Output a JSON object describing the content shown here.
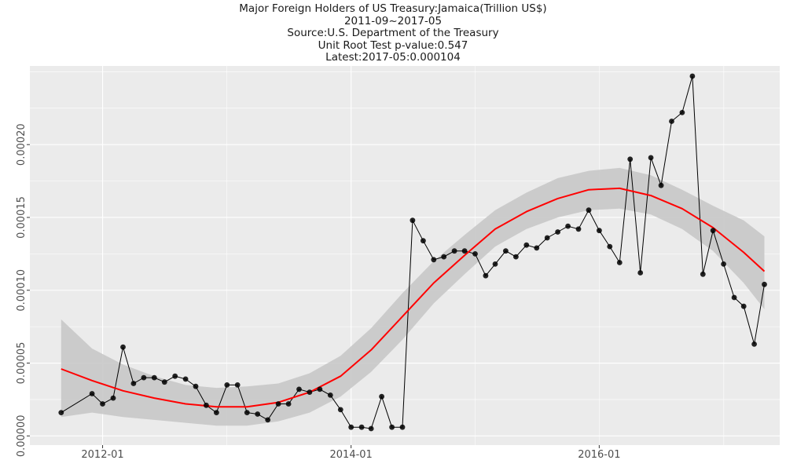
{
  "title_lines": [
    "Major Foreign Holders of US Treasury:Jamaica(Trillion US$)",
    "2011-09~2017-05",
    "Source:U.S. Department of the Treasury",
    "Unit Root Test p-value:0.547",
    "Latest:2017-05:0.000104"
  ],
  "colors": {
    "panel": "#ebebeb",
    "grid": "#ffffff",
    "series_line": "#000000",
    "points": "#000000",
    "smooth_line": "#ff0000",
    "ribbon": "#c8c8c8"
  },
  "chart_data": {
    "type": "line",
    "xlabel": "",
    "ylabel": "",
    "x_tick_labels": [
      "2012-01",
      "2014-01",
      "2016-01"
    ],
    "y_tick_labels": [
      "0.00000",
      "0.00005",
      "0.00010",
      "0.00015",
      "0.00020"
    ],
    "y_ticks": [
      0,
      5e-05,
      0.0001,
      0.00015,
      0.0002
    ],
    "x_range": [
      "2011-06-01",
      "2017-06-15"
    ],
    "ylim": [
      -6.3e-06,
      0.000254
    ],
    "grid": true,
    "series": [
      {
        "values": [
          [
            "2011-09",
            1.6e-05
          ],
          [
            "2011-12",
            2.9e-05
          ],
          [
            "2012-01",
            2.2e-05
          ],
          [
            "2012-02",
            2.6e-05
          ],
          [
            "2012-03",
            6.1e-05
          ],
          [
            "2012-04",
            3.6e-05
          ],
          [
            "2012-05",
            4e-05
          ],
          [
            "2012-06",
            4e-05
          ],
          [
            "2012-07",
            3.7e-05
          ],
          [
            "2012-08",
            4.1e-05
          ],
          [
            "2012-09",
            3.9e-05
          ],
          [
            "2012-10",
            3.4e-05
          ],
          [
            "2012-11",
            2.1e-05
          ],
          [
            "2012-12",
            1.6e-05
          ],
          [
            "2013-01",
            3.5e-05
          ],
          [
            "2013-02",
            3.5e-05
          ],
          [
            "2013-03",
            1.6e-05
          ],
          [
            "2013-04",
            1.5e-05
          ],
          [
            "2013-05",
            1.1e-05
          ],
          [
            "2013-06",
            2.2e-05
          ],
          [
            "2013-07",
            2.2e-05
          ],
          [
            "2013-08",
            3.2e-05
          ],
          [
            "2013-09",
            3e-05
          ],
          [
            "2013-10",
            3.2e-05
          ],
          [
            "2013-11",
            2.8e-05
          ],
          [
            "2013-12",
            1.8e-05
          ],
          [
            "2014-01",
            6e-06
          ],
          [
            "2014-02",
            6e-06
          ],
          [
            "2014-03",
            5e-06
          ],
          [
            "2014-04",
            2.7e-05
          ],
          [
            "2014-05",
            6e-06
          ],
          [
            "2014-06",
            6e-06
          ],
          [
            "2014-07",
            0.000148
          ],
          [
            "2014-08",
            0.000134
          ],
          [
            "2014-09",
            0.000121
          ],
          [
            "2014-10",
            0.000123
          ],
          [
            "2014-11",
            0.000127
          ],
          [
            "2014-12",
            0.000127
          ],
          [
            "2015-01",
            0.000125
          ],
          [
            "2015-02",
            0.00011
          ],
          [
            "2015-03",
            0.000118
          ],
          [
            "2015-04",
            0.000127
          ],
          [
            "2015-05",
            0.000123
          ],
          [
            "2015-06",
            0.000131
          ],
          [
            "2015-07",
            0.000129
          ],
          [
            "2015-08",
            0.000136
          ],
          [
            "2015-09",
            0.00014
          ],
          [
            "2015-10",
            0.000144
          ],
          [
            "2015-11",
            0.000142
          ],
          [
            "2015-12",
            0.000155
          ],
          [
            "2016-01",
            0.000141
          ],
          [
            "2016-02",
            0.00013
          ],
          [
            "2016-03",
            0.000119
          ],
          [
            "2016-04",
            0.00019
          ],
          [
            "2016-05",
            0.000112
          ],
          [
            "2016-06",
            0.000191
          ],
          [
            "2016-07",
            0.000172
          ],
          [
            "2016-08",
            0.000216
          ],
          [
            "2016-09",
            0.000222
          ],
          [
            "2016-10",
            0.000247
          ],
          [
            "2016-11",
            0.000111
          ],
          [
            "2016-12",
            0.000141
          ],
          [
            "2017-01",
            0.000118
          ],
          [
            "2017-02",
            9.5e-05
          ],
          [
            "2017-03",
            8.9e-05
          ],
          [
            "2017-04",
            6.3e-05
          ],
          [
            "2017-05",
            0.000104
          ]
        ]
      }
    ],
    "smooth": [
      [
        "2011-09",
        4.6e-05,
        1.3e-05,
        8e-05
      ],
      [
        "2011-12",
        3.8e-05,
        1.6e-05,
        6e-05
      ],
      [
        "2012-03",
        3.1e-05,
        1.3e-05,
        4.9e-05
      ],
      [
        "2012-06",
        2.6e-05,
        1.1e-05,
        4.1e-05
      ],
      [
        "2012-09",
        2.2e-05,
        9e-06,
        3.5e-05
      ],
      [
        "2012-12",
        2e-05,
        7e-06,
        3.3e-05
      ],
      [
        "2013-03",
        2e-05,
        7e-06,
        3.4e-05
      ],
      [
        "2013-06",
        2.3e-05,
        1e-05,
        3.6e-05
      ],
      [
        "2013-09",
        3e-05,
        1.6e-05,
        4.3e-05
      ],
      [
        "2013-12",
        4.1e-05,
        2.7e-05,
        5.5e-05
      ],
      [
        "2014-03",
        5.9e-05,
        4.4e-05,
        7.4e-05
      ],
      [
        "2014-06",
        8.2e-05,
        6.6e-05,
        9.8e-05
      ],
      [
        "2014-09",
        0.000105,
        9.1e-05,
        0.00012
      ],
      [
        "2014-12",
        0.000124,
        0.000111,
        0.000138
      ],
      [
        "2015-03",
        0.000142,
        0.00013,
        0.000155
      ],
      [
        "2015-06",
        0.000154,
        0.000142,
        0.000167
      ],
      [
        "2015-09",
        0.000163,
        0.00015,
        0.000177
      ],
      [
        "2015-12",
        0.000169,
        0.000155,
        0.000182
      ],
      [
        "2016-03",
        0.00017,
        0.000156,
        0.000184
      ],
      [
        "2016-06",
        0.000165,
        0.000152,
        0.000179
      ],
      [
        "2016-09",
        0.000156,
        0.000142,
        0.000169
      ],
      [
        "2016-12",
        0.000143,
        0.000127,
        0.000158
      ],
      [
        "2017-03",
        0.000126,
        0.000105,
        0.000148
      ],
      [
        "2017-05",
        0.000113,
        8.7e-05,
        0.000137
      ]
    ]
  }
}
